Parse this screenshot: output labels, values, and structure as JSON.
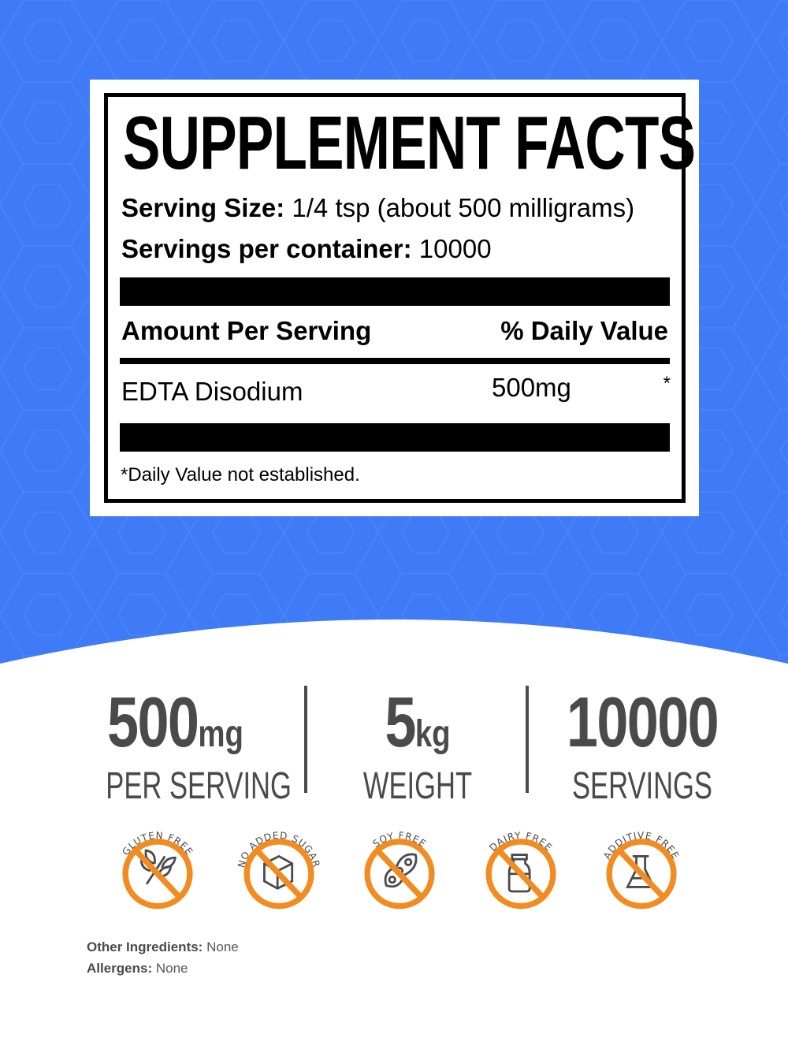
{
  "colors": {
    "background_blue": "#3f7bf7",
    "badge_orange": "#f28b20",
    "stat_gray": "#4a4a4a"
  },
  "label": {
    "title": "SUPPLEMENT FACTS",
    "serving_size_label": "Serving Size:",
    "serving_size_value": "1/4 tsp (about 500 milligrams)",
    "servings_label": "Servings per container:",
    "servings_value": "10000",
    "amount_header": "Amount Per Serving",
    "dv_header": "% Daily Value",
    "ingredient": {
      "name": "EDTA Disodium",
      "amount": "500mg",
      "dv": "*"
    },
    "footnote": "*Daily Value not established."
  },
  "stats": [
    {
      "value": "500",
      "unit": "mg",
      "caption": "PER SERVING"
    },
    {
      "value": "5",
      "unit": "kg",
      "caption": "WEIGHT"
    },
    {
      "value": "10000",
      "unit": "",
      "caption": "SERVINGS"
    }
  ],
  "badges": [
    {
      "label": "GLUTEN FREE",
      "icon": "wheat-icon"
    },
    {
      "label": "NO ADDED SUGAR",
      "icon": "sugar-cube-icon"
    },
    {
      "label": "SOY FREE",
      "icon": "soybean-icon"
    },
    {
      "label": "DAIRY FREE",
      "icon": "milk-bottle-icon"
    },
    {
      "label": "ADDITIVE FREE",
      "icon": "flask-icon"
    }
  ],
  "other_ingredients": {
    "label": "Other Ingredients:",
    "value": "None"
  },
  "allergens": {
    "label": "Allergens:",
    "value": "None"
  }
}
